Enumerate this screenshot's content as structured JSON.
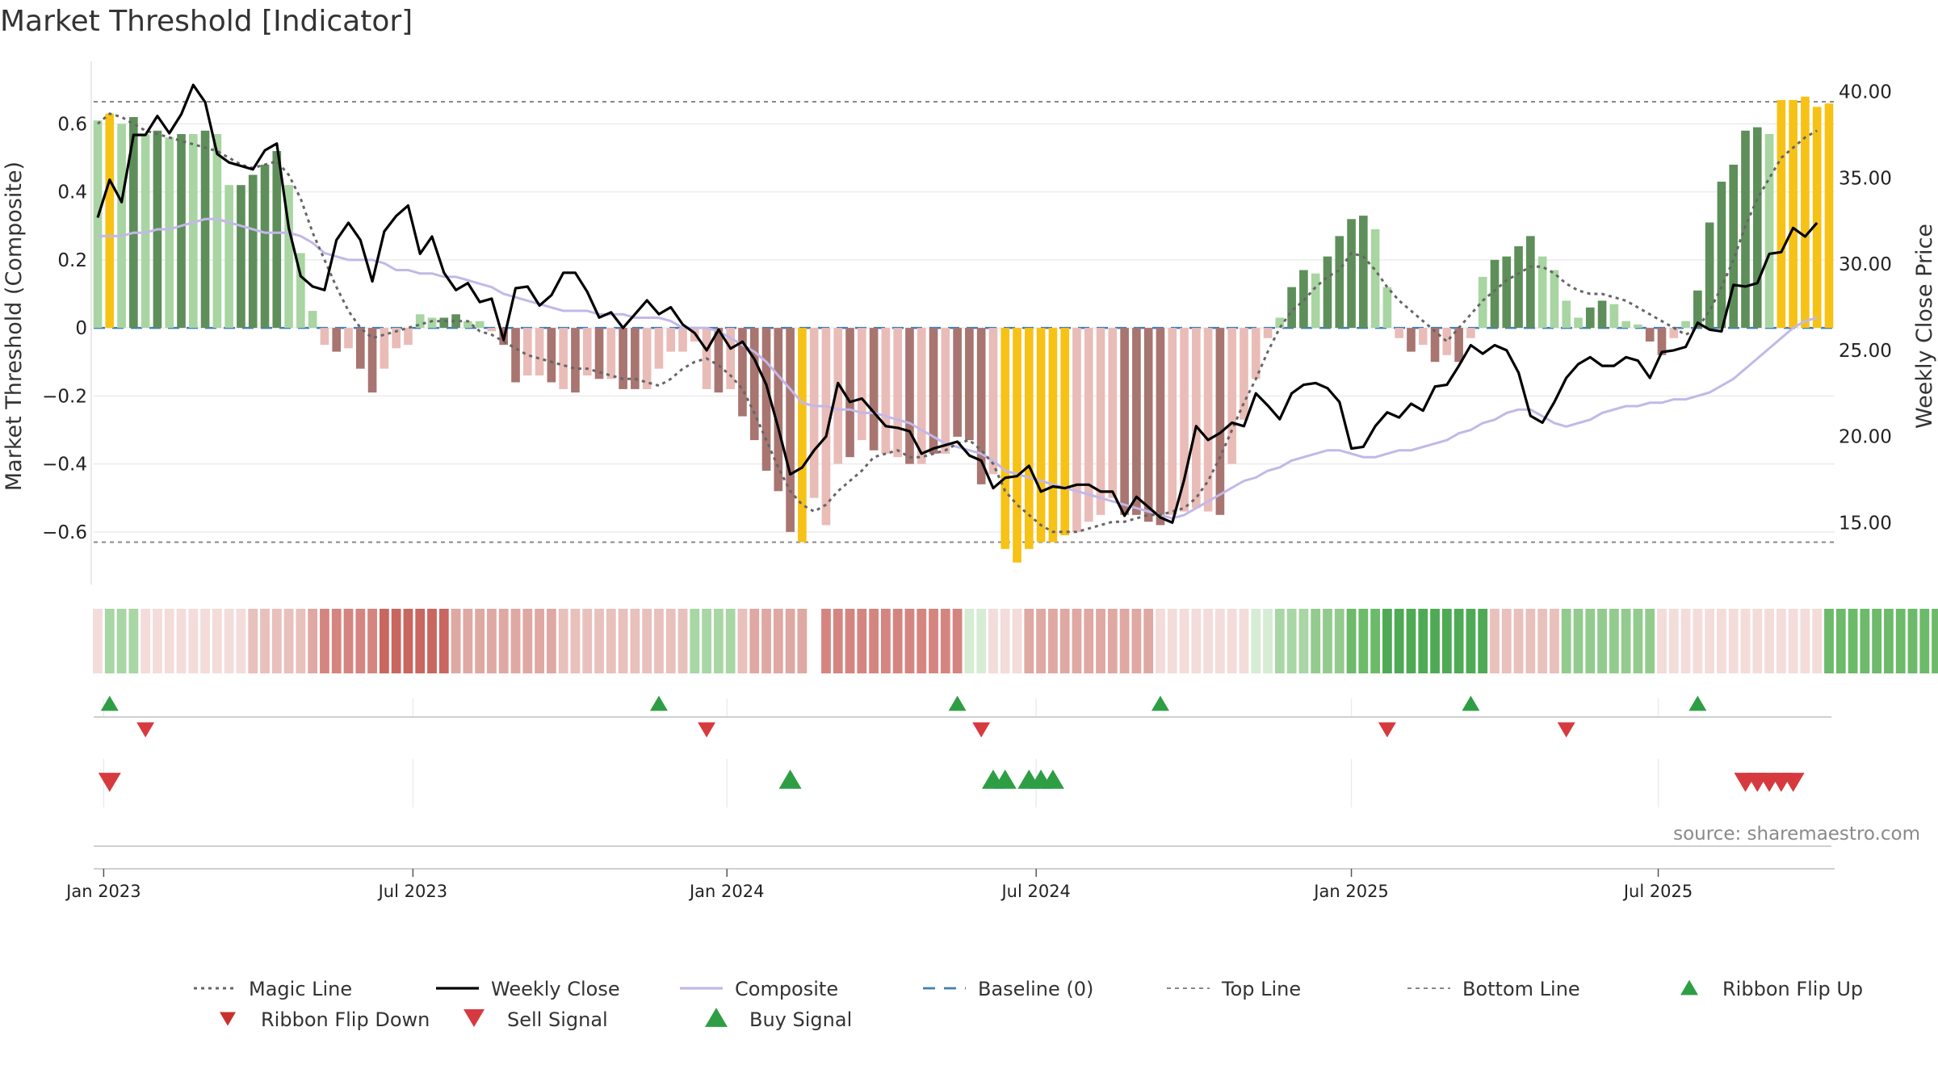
{
  "colors": {
    "strong_green": "#5e8f5a",
    "light_green": "#a8d5a2",
    "strong_red": "#a87571",
    "light_red": "#e9bcb8",
    "yellow": "#f7c216",
    "weekly_close": "#000000",
    "composite": "#c3b8e8",
    "magic_line": "#666666",
    "baseline": "#3f7fb4",
    "top_bottom_line": "#888888",
    "buy": "#2e9e44",
    "sell": "#d63a3f"
  },
  "chart_data": {
    "type": "bar",
    "title": "Market Threshold [Indicator]",
    "ylabel_left": "Market Threshold (Composite)",
    "ylabel_right": "Weekly Close Price",
    "ylim_left": [
      -0.75,
      0.76
    ],
    "ylim_right": [
      11.5,
      41.3
    ],
    "left_ticks": [
      "0.6",
      "0.4",
      "0.2",
      "0",
      "−0.2",
      "−0.4",
      "−0.6"
    ],
    "left_tick_values": [
      0.6,
      0.4,
      0.2,
      0,
      -0.2,
      -0.4,
      -0.6
    ],
    "right_ticks": [
      "40.00",
      "35.00",
      "30.00",
      "25.00",
      "20.00",
      "15.00"
    ],
    "right_tick_values": [
      40,
      35,
      30,
      25,
      20,
      15
    ],
    "x_tick_labels": [
      "Jan 2023",
      "Jul 2023",
      "Jan 2024",
      "Jul 2024",
      "Jan 2025",
      "Jul 2025"
    ],
    "x_tick_weeks": [
      0.5,
      26.4,
      52.7,
      78.6,
      105,
      130.7
    ],
    "top_line": 0.665,
    "bottom_line": -0.63,
    "bars": [
      [
        0.61,
        "lg"
      ],
      [
        0.63,
        "y"
      ],
      [
        0.6,
        "lg"
      ],
      [
        0.62,
        "sg"
      ],
      [
        0.57,
        "lg"
      ],
      [
        0.58,
        "sg"
      ],
      [
        0.56,
        "lg"
      ],
      [
        0.57,
        "sg"
      ],
      [
        0.57,
        "lg"
      ],
      [
        0.58,
        "sg"
      ],
      [
        0.57,
        "lg"
      ],
      [
        0.42,
        "lg"
      ],
      [
        0.42,
        "sg"
      ],
      [
        0.45,
        "sg"
      ],
      [
        0.48,
        "sg"
      ],
      [
        0.52,
        "sg"
      ],
      [
        0.42,
        "lg"
      ],
      [
        0.22,
        "lg"
      ],
      [
        0.05,
        "lg"
      ],
      [
        -0.05,
        "lr"
      ],
      [
        -0.07,
        "sr"
      ],
      [
        -0.06,
        "lr"
      ],
      [
        -0.12,
        "sr"
      ],
      [
        -0.19,
        "sr"
      ],
      [
        -0.12,
        "lr"
      ],
      [
        -0.06,
        "lr"
      ],
      [
        -0.05,
        "lr"
      ],
      [
        0.04,
        "lg"
      ],
      [
        0.03,
        "lg"
      ],
      [
        0.03,
        "sg"
      ],
      [
        0.04,
        "sg"
      ],
      [
        0.02,
        "lg"
      ],
      [
        0.02,
        "lg"
      ],
      [
        -0.01,
        "lr"
      ],
      [
        -0.05,
        "sr"
      ],
      [
        -0.16,
        "sr"
      ],
      [
        -0.14,
        "lr"
      ],
      [
        -0.14,
        "lr"
      ],
      [
        -0.16,
        "sr"
      ],
      [
        -0.18,
        "lr"
      ],
      [
        -0.19,
        "sr"
      ],
      [
        -0.14,
        "lr"
      ],
      [
        -0.15,
        "sr"
      ],
      [
        -0.15,
        "lr"
      ],
      [
        -0.18,
        "sr"
      ],
      [
        -0.18,
        "sr"
      ],
      [
        -0.18,
        "lr"
      ],
      [
        -0.12,
        "lr"
      ],
      [
        -0.07,
        "lr"
      ],
      [
        -0.07,
        "lr"
      ],
      [
        -0.04,
        "lr"
      ],
      [
        -0.18,
        "lr"
      ],
      [
        -0.19,
        "sr"
      ],
      [
        -0.18,
        "lr"
      ],
      [
        -0.26,
        "sr"
      ],
      [
        -0.33,
        "sr"
      ],
      [
        -0.42,
        "sr"
      ],
      [
        -0.48,
        "sr"
      ],
      [
        -0.6,
        "sr"
      ],
      [
        -0.63,
        "y"
      ],
      [
        -0.5,
        "lr"
      ],
      [
        -0.58,
        "lr"
      ],
      [
        -0.4,
        "lr"
      ],
      [
        -0.38,
        "sr"
      ],
      [
        -0.33,
        "lr"
      ],
      [
        -0.36,
        "sr"
      ],
      [
        -0.37,
        "lr"
      ],
      [
        -0.38,
        "lr"
      ],
      [
        -0.4,
        "sr"
      ],
      [
        -0.4,
        "lr"
      ],
      [
        -0.37,
        "sr"
      ],
      [
        -0.37,
        "lr"
      ],
      [
        -0.32,
        "sr"
      ],
      [
        -0.33,
        "sr"
      ],
      [
        -0.46,
        "sr"
      ],
      [
        -0.43,
        "lr"
      ],
      [
        -0.65,
        "y"
      ],
      [
        -0.69,
        "y"
      ],
      [
        -0.65,
        "y"
      ],
      [
        -0.63,
        "y"
      ],
      [
        -0.63,
        "y"
      ],
      [
        -0.61,
        "y"
      ],
      [
        -0.6,
        "lr"
      ],
      [
        -0.57,
        "lr"
      ],
      [
        -0.55,
        "lr"
      ],
      [
        -0.5,
        "lr"
      ],
      [
        -0.55,
        "sr"
      ],
      [
        -0.55,
        "sr"
      ],
      [
        -0.57,
        "sr"
      ],
      [
        -0.58,
        "sr"
      ],
      [
        -0.55,
        "lr"
      ],
      [
        -0.54,
        "lr"
      ],
      [
        -0.53,
        "lr"
      ],
      [
        -0.54,
        "lr"
      ],
      [
        -0.55,
        "sr"
      ],
      [
        -0.4,
        "lr"
      ],
      [
        -0.27,
        "lr"
      ],
      [
        -0.15,
        "lr"
      ],
      [
        -0.03,
        "lr"
      ],
      [
        0.03,
        "lg"
      ],
      [
        0.12,
        "sg"
      ],
      [
        0.17,
        "sg"
      ],
      [
        0.16,
        "lg"
      ],
      [
        0.21,
        "sg"
      ],
      [
        0.27,
        "sg"
      ],
      [
        0.32,
        "sg"
      ],
      [
        0.33,
        "sg"
      ],
      [
        0.29,
        "lg"
      ],
      [
        0.12,
        "lg"
      ],
      [
        -0.03,
        "lr"
      ],
      [
        -0.07,
        "sr"
      ],
      [
        -0.05,
        "lr"
      ],
      [
        -0.1,
        "sr"
      ],
      [
        -0.08,
        "lr"
      ],
      [
        -0.1,
        "sr"
      ],
      [
        -0.03,
        "lr"
      ],
      [
        0.15,
        "lg"
      ],
      [
        0.2,
        "sg"
      ],
      [
        0.21,
        "sg"
      ],
      [
        0.24,
        "sg"
      ],
      [
        0.27,
        "sg"
      ],
      [
        0.21,
        "lg"
      ],
      [
        0.17,
        "lg"
      ],
      [
        0.08,
        "lg"
      ],
      [
        0.03,
        "lg"
      ],
      [
        0.06,
        "sg"
      ],
      [
        0.08,
        "sg"
      ],
      [
        0.07,
        "lg"
      ],
      [
        0.02,
        "lg"
      ],
      [
        0.01,
        "lg"
      ],
      [
        -0.04,
        "sr"
      ],
      [
        -0.08,
        "sr"
      ],
      [
        -0.03,
        "lr"
      ],
      [
        0.02,
        "lg"
      ],
      [
        0.11,
        "sg"
      ],
      [
        0.31,
        "sg"
      ],
      [
        0.43,
        "sg"
      ],
      [
        0.48,
        "sg"
      ],
      [
        0.58,
        "sg"
      ],
      [
        0.59,
        "sg"
      ],
      [
        0.57,
        "lg"
      ],
      [
        0.67,
        "y"
      ],
      [
        0.67,
        "y"
      ],
      [
        0.68,
        "y"
      ],
      [
        0.65,
        "y"
      ],
      [
        0.66,
        "y"
      ]
    ],
    "weekly_close": [
      32.7,
      34.9,
      33.6,
      37.5,
      37.5,
      38.6,
      37.6,
      38.7,
      40.4,
      39.4,
      36.4,
      35.9,
      35.7,
      35.5,
      36.6,
      37.0,
      32.1,
      29.3,
      28.7,
      28.5,
      31.4,
      32.4,
      31.4,
      29.0,
      31.9,
      32.8,
      33.4,
      30.6,
      31.6,
      29.5,
      28.5,
      28.9,
      27.8,
      28.0,
      25.6,
      28.6,
      28.7,
      27.6,
      28.2,
      29.5,
      29.5,
      28.4,
      26.9,
      27.2,
      26.3,
      27.1,
      27.9,
      27.1,
      27.5,
      26.5,
      26.0,
      25.0,
      26.2,
      25.1,
      25.5,
      24.5,
      23.0,
      20.5,
      17.8,
      18.2,
      19.2,
      20.0,
      23.1,
      22.0,
      22.2,
      21.4,
      20.6,
      20.5,
      20.3,
      19.0,
      19.3,
      19.5,
      19.7,
      18.9,
      18.6,
      17.0,
      17.6,
      17.7,
      18.3,
      16.8,
      17.1,
      17.0,
      17.2,
      17.2,
      16.8,
      16.8,
      15.4,
      16.5,
      15.9,
      15.3,
      15.0,
      17.5,
      20.6,
      19.8,
      20.2,
      20.8,
      20.6,
      22.5,
      21.8,
      21.0,
      22.5,
      23.0,
      23.1,
      22.8,
      22.0,
      19.3,
      19.4,
      20.6,
      21.4,
      21.1,
      21.9,
      21.5,
      22.9,
      23.0,
      24.1,
      25.3,
      24.8,
      25.3,
      25.0,
      23.7,
      21.2,
      20.8,
      22.0,
      23.4,
      24.2,
      24.6,
      24.1,
      24.1,
      24.6,
      24.4,
      23.4,
      24.9,
      25.0,
      25.2,
      26.6,
      26.2,
      26.1,
      28.8,
      28.7,
      28.9,
      30.6,
      30.7,
      32.1,
      31.6,
      32.4
    ],
    "composite": [
      0.27,
      0.27,
      0.27,
      0.28,
      0.28,
      0.29,
      0.29,
      0.3,
      0.31,
      0.32,
      0.32,
      0.31,
      0.3,
      0.29,
      0.28,
      0.28,
      0.28,
      0.27,
      0.25,
      0.22,
      0.21,
      0.2,
      0.2,
      0.2,
      0.19,
      0.17,
      0.17,
      0.16,
      0.16,
      0.15,
      0.15,
      0.14,
      0.13,
      0.12,
      0.1,
      0.09,
      0.08,
      0.07,
      0.06,
      0.05,
      0.05,
      0.05,
      0.04,
      0.04,
      0.04,
      0.03,
      0.03,
      0.03,
      0.02,
      0.0,
      0.0,
      0.0,
      -0.01,
      -0.03,
      -0.05,
      -0.07,
      -0.1,
      -0.14,
      -0.18,
      -0.22,
      -0.23,
      -0.23,
      -0.24,
      -0.24,
      -0.25,
      -0.25,
      -0.26,
      -0.27,
      -0.28,
      -0.3,
      -0.32,
      -0.34,
      -0.35,
      -0.36,
      -0.37,
      -0.39,
      -0.42,
      -0.43,
      -0.44,
      -0.45,
      -0.46,
      -0.47,
      -0.48,
      -0.49,
      -0.5,
      -0.51,
      -0.52,
      -0.53,
      -0.54,
      -0.55,
      -0.56,
      -0.55,
      -0.53,
      -0.51,
      -0.49,
      -0.47,
      -0.45,
      -0.44,
      -0.42,
      -0.41,
      -0.39,
      -0.38,
      -0.37,
      -0.36,
      -0.36,
      -0.37,
      -0.38,
      -0.38,
      -0.37,
      -0.36,
      -0.36,
      -0.35,
      -0.34,
      -0.33,
      -0.31,
      -0.3,
      -0.28,
      -0.27,
      -0.25,
      -0.24,
      -0.24,
      -0.26,
      -0.28,
      -0.29,
      -0.28,
      -0.27,
      -0.25,
      -0.24,
      -0.23,
      -0.23,
      -0.22,
      -0.22,
      -0.21,
      -0.21,
      -0.2,
      -0.19,
      -0.17,
      -0.15,
      -0.12,
      -0.09,
      -0.06,
      -0.03,
      0.0,
      0.02,
      0.03
    ],
    "magic_line": [
      0.6,
      0.63,
      0.62,
      0.6,
      0.58,
      0.57,
      0.56,
      0.55,
      0.54,
      0.53,
      0.52,
      0.5,
      0.48,
      0.47,
      0.48,
      0.49,
      0.45,
      0.38,
      0.28,
      0.2,
      0.12,
      0.05,
      0.0,
      -0.03,
      -0.02,
      -0.01,
      0.0,
      0.01,
      0.02,
      0.02,
      0.02,
      0.02,
      -0.01,
      -0.02,
      -0.04,
      -0.06,
      -0.08,
      -0.09,
      -0.1,
      -0.11,
      -0.12,
      -0.12,
      -0.13,
      -0.14,
      -0.15,
      -0.15,
      -0.16,
      -0.17,
      -0.15,
      -0.12,
      -0.1,
      -0.09,
      -0.11,
      -0.14,
      -0.18,
      -0.25,
      -0.33,
      -0.41,
      -0.48,
      -0.52,
      -0.54,
      -0.52,
      -0.48,
      -0.45,
      -0.42,
      -0.38,
      -0.37,
      -0.36,
      -0.38,
      -0.38,
      -0.37,
      -0.36,
      -0.34,
      -0.33,
      -0.36,
      -0.4,
      -0.48,
      -0.52,
      -0.55,
      -0.58,
      -0.6,
      -0.6,
      -0.6,
      -0.59,
      -0.58,
      -0.57,
      -0.57,
      -0.56,
      -0.55,
      -0.55,
      -0.54,
      -0.53,
      -0.5,
      -0.45,
      -0.38,
      -0.3,
      -0.22,
      -0.15,
      -0.07,
      0.0,
      0.05,
      0.08,
      0.12,
      0.15,
      0.17,
      0.22,
      0.21,
      0.17,
      0.12,
      0.08,
      0.05,
      0.02,
      -0.01,
      -0.04,
      0.0,
      0.04,
      0.08,
      0.11,
      0.14,
      0.16,
      0.18,
      0.18,
      0.16,
      0.13,
      0.11,
      0.1,
      0.1,
      0.09,
      0.08,
      0.06,
      0.04,
      0.02,
      0.0,
      -0.02,
      0.0,
      0.05,
      0.12,
      0.2,
      0.3,
      0.38,
      0.44,
      0.5,
      0.53,
      0.56,
      0.58
    ],
    "ribbon": [
      "r1",
      "g1",
      "g1",
      "g1",
      "r1",
      "r1",
      "r1",
      "r1",
      "r1",
      "r1",
      "r1",
      "r1",
      "r1",
      "r2",
      "r2",
      "r2",
      "r2",
      "r2",
      "r3",
      "r4",
      "r4",
      "r4",
      "r4",
      "r4",
      "r5",
      "r5",
      "r5",
      "r5",
      "r5",
      "r5",
      "r3",
      "r3",
      "r3",
      "r3",
      "r3",
      "r3",
      "r3",
      "r3",
      "r3",
      "r2",
      "r2",
      "r2",
      "r2",
      "r2",
      "r2",
      "r2",
      "r2",
      "r2",
      "r2",
      "r2",
      "g1",
      "g1",
      "g1",
      "g1",
      "r2",
      "r3",
      "r3",
      "r3",
      "r3",
      "r3",
      "x",
      "r4",
      "r4",
      "r4",
      "r4",
      "r4",
      "r4",
      "r4",
      "r4",
      "r4",
      "r4",
      "r4",
      "r4",
      "g0",
      "g0",
      "r1",
      "r1",
      "r1",
      "r3",
      "r3",
      "r3",
      "r3",
      "r3",
      "r3",
      "r3",
      "r3",
      "r3",
      "r3",
      "r3",
      "r1",
      "r1",
      "r1",
      "r1",
      "r1",
      "r1",
      "r1",
      "r1",
      "g0",
      "g0",
      "g1",
      "g1",
      "g1",
      "g2",
      "g2",
      "g2",
      "g3",
      "g3",
      "g3",
      "g4",
      "g4",
      "g4",
      "g4",
      "g4",
      "g4",
      "g4",
      "g4",
      "g4",
      "r2",
      "r2",
      "r2",
      "r2",
      "r2",
      "r2",
      "g2",
      "g2",
      "g2",
      "g2",
      "g2",
      "g2",
      "g2",
      "g2",
      "r1",
      "r1",
      "r1",
      "r1",
      "r1",
      "r1",
      "r1",
      "r1",
      "r1",
      "r1",
      "r1",
      "r1",
      "r1",
      "r1",
      "g3",
      "g3",
      "g3",
      "g3",
      "g3",
      "g3",
      "g3",
      "g3",
      "g3",
      "g3",
      "g3",
      "g3"
    ],
    "ribbon_flip_up_weeks": [
      1,
      47,
      72,
      89,
      115,
      134
    ],
    "ribbon_flip_down_weeks": [
      4,
      51,
      74,
      108,
      123
    ],
    "buy_signal_weeks": [
      58,
      75,
      76,
      78,
      79,
      80
    ],
    "sell_signal_weeks": [
      1,
      138,
      139,
      140,
      141,
      142
    ],
    "source": "source: sharemaestro.com"
  },
  "legend": [
    {
      "label": "Magic Line",
      "key": "magic"
    },
    {
      "label": "Weekly Close",
      "key": "close"
    },
    {
      "label": "Composite",
      "key": "composite"
    },
    {
      "label": "Baseline (0)",
      "key": "baseline"
    },
    {
      "label": "Top Line",
      "key": "topline"
    },
    {
      "label": "Bottom Line",
      "key": "bottomline"
    },
    {
      "label": "Ribbon Flip Up",
      "key": "flipup"
    },
    {
      "label": "Ribbon Flip Down",
      "key": "flipdown"
    },
    {
      "label": "Sell Signal",
      "key": "sell"
    },
    {
      "label": "Buy Signal",
      "key": "buy"
    }
  ]
}
